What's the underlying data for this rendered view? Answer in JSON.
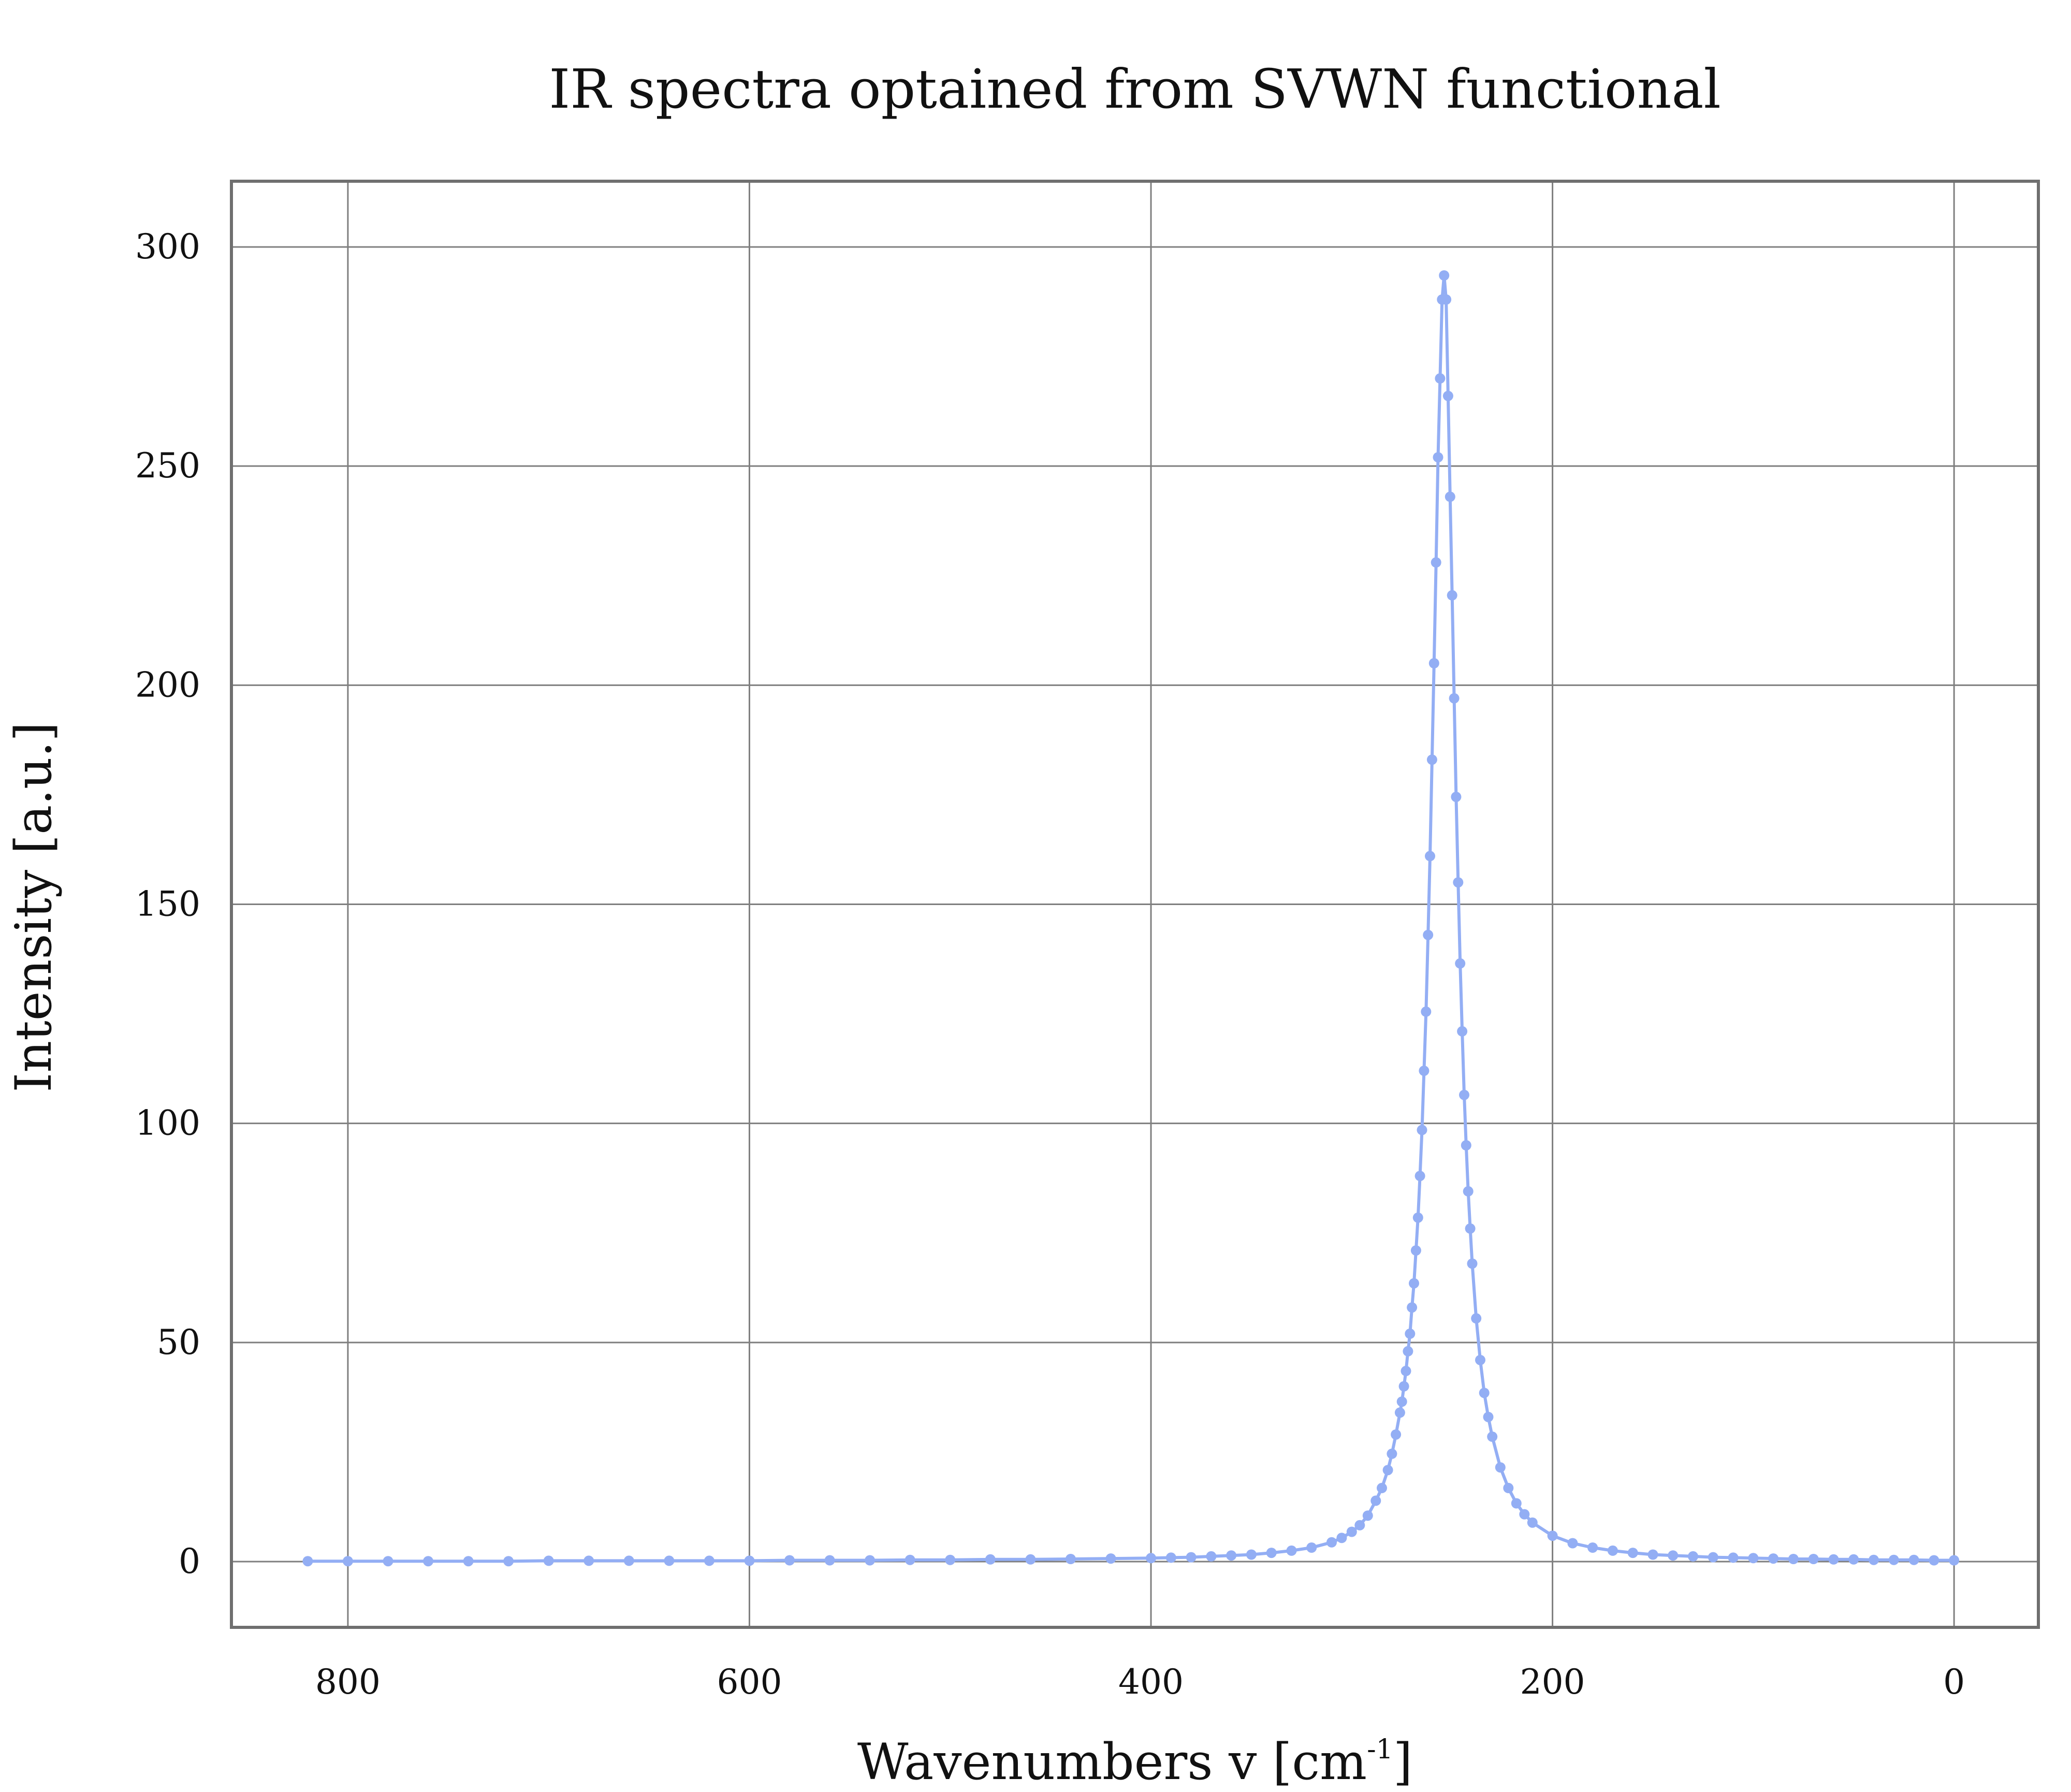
{
  "chart_data": {
    "type": "line",
    "title": "IR spectra optained from SVWN functional",
    "xlabel": "Wavenumbers v [cm",
    "xlabel_sup": "-1",
    "xlabel_close": "]",
    "ylabel": "Intensity [a.u.]",
    "xlim": [
      858,
      -42
    ],
    "ylim": [
      -15,
      315
    ],
    "x_reversed": true,
    "grid": true,
    "markers": true,
    "line_color": "#93aef4",
    "xticks": [
      800,
      600,
      400,
      200,
      0
    ],
    "xtick_labels": [
      "800",
      "600",
      "400",
      "200",
      "0"
    ],
    "yticks": [
      0,
      50,
      100,
      150,
      200,
      250,
      300
    ],
    "ytick_labels": [
      "0",
      "50",
      "100",
      "150",
      "200",
      "250",
      "300"
    ],
    "series": [
      {
        "x": [
          820,
          800,
          780,
          760,
          740,
          720,
          700,
          680,
          660,
          640,
          620,
          600,
          580,
          560,
          540,
          520,
          500,
          480,
          460,
          440,
          420,
          400,
          390,
          380,
          370,
          360,
          350,
          340,
          330,
          320,
          310,
          305,
          300,
          296,
          292,
          288,
          285,
          282,
          280,
          278,
          276,
          275,
          274,
          273,
          272,
          271,
          270,
          269,
          268,
          267,
          266,
          265,
          264,
          263,
          262,
          261,
          260,
          259,
          258,
          257,
          256,
          255,
          254,
          253,
          252,
          251,
          250,
          249,
          248,
          247,
          246,
          245,
          244,
          243,
          242,
          241,
          240,
          238,
          236,
          234,
          232,
          230,
          226,
          222,
          218,
          214,
          210,
          200,
          190,
          180,
          170,
          160,
          150,
          140,
          130,
          120,
          110,
          100,
          90,
          80,
          70,
          60,
          50,
          40,
          30,
          20,
          10,
          0
        ],
        "y": [
          0.1,
          0.1,
          0.1,
          0.1,
          0.1,
          0.1,
          0.2,
          0.2,
          0.2,
          0.2,
          0.2,
          0.2,
          0.3,
          0.3,
          0.3,
          0.4,
          0.4,
          0.5,
          0.5,
          0.6,
          0.7,
          0.8,
          0.9,
          1.0,
          1.2,
          1.4,
          1.6,
          2.0,
          2.5,
          3.2,
          4.4,
          5.4,
          6.8,
          8.3,
          10.5,
          13.9,
          16.8,
          20.9,
          24.6,
          29.0,
          34.0,
          36.5,
          40.0,
          43.5,
          48.0,
          52.0,
          58.0,
          63.5,
          71.0,
          78.5,
          88.0,
          98.5,
          112.0,
          125.5,
          143.0,
          161.0,
          183.0,
          205.0,
          228.0,
          252.0,
          270.0,
          288.0,
          293.5,
          288.0,
          266.0,
          243.0,
          220.5,
          197.0,
          174.5,
          155.0,
          136.5,
          121.0,
          106.5,
          95.0,
          84.5,
          76.0,
          68.0,
          55.5,
          46.0,
          38.5,
          33.0,
          28.5,
          21.5,
          16.8,
          13.3,
          10.8,
          8.9,
          5.9,
          4.2,
          3.2,
          2.5,
          2.0,
          1.6,
          1.4,
          1.2,
          1.0,
          0.9,
          0.8,
          0.7,
          0.6,
          0.6,
          0.5,
          0.5,
          0.4,
          0.4,
          0.4,
          0.3,
          0.3
        ]
      }
    ]
  }
}
